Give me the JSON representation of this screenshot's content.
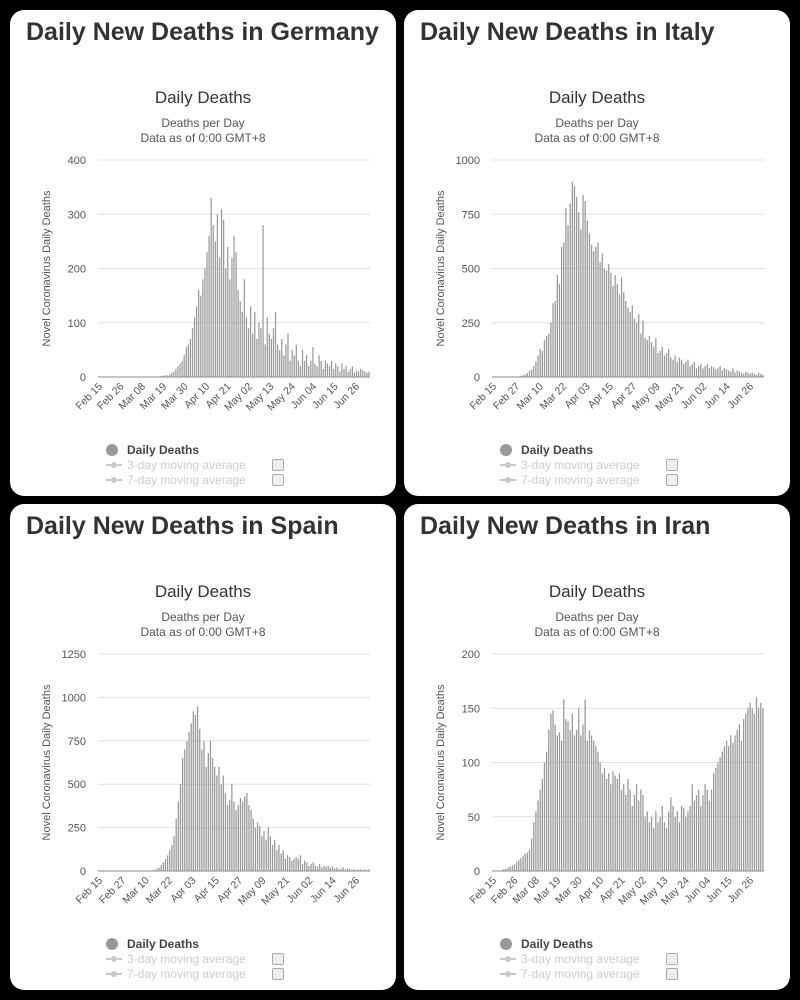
{
  "panels": [
    {
      "title": "Daily New Deaths in Germany",
      "chart_title": "Daily Deaths",
      "subtitle": [
        "Deaths per Day",
        "Data as of 0:00 GMT+8"
      ]
    },
    {
      "title": "Daily New Deaths in Italy",
      "chart_title": "Daily Deaths",
      "subtitle": [
        "Deaths per Day",
        "Data as of 0:00 GMT+8"
      ]
    },
    {
      "title": "Daily New Deaths in Spain",
      "chart_title": "Daily Deaths",
      "subtitle": [
        "Deaths per Day",
        "Data as of 0:00 GMT+8"
      ]
    },
    {
      "title": "Daily New Deaths in Iran",
      "chart_title": "Daily Deaths",
      "subtitle": [
        "Deaths per Day",
        "Data as of 0:00 GMT+8"
      ]
    }
  ],
  "legend": [
    "Daily Deaths",
    "3-day moving average",
    "7-day moving average"
  ],
  "bar_color": "#9a9a9a",
  "chart_data": [
    {
      "type": "bar",
      "title": "Daily Deaths",
      "ylabel": "Novel Coronavirus Daily Deaths",
      "ylim": [
        0,
        400
      ],
      "yticks": [
        0,
        100,
        200,
        300,
        400
      ],
      "xticks": [
        "Feb 15",
        "Feb 26",
        "Mar 08",
        "Mar 19",
        "Mar 30",
        "Apr 10",
        "Apr 21",
        "May 02",
        "May 13",
        "May 24",
        "Jun 04",
        "Jun 15",
        "Jun 26"
      ],
      "series": [
        {
          "name": "Daily Deaths",
          "values": [
            0,
            0,
            0,
            0,
            0,
            0,
            0,
            0,
            0,
            0,
            0,
            0,
            0,
            0,
            0,
            0,
            0,
            0,
            0,
            0,
            0,
            0,
            0,
            0,
            0,
            0,
            0,
            1,
            0,
            1,
            2,
            2,
            3,
            3,
            5,
            8,
            10,
            15,
            20,
            25,
            30,
            40,
            55,
            60,
            70,
            90,
            110,
            130,
            160,
            150,
            180,
            200,
            230,
            260,
            330,
            280,
            250,
            300,
            220,
            310,
            290,
            200,
            240,
            180,
            220,
            260,
            230,
            160,
            140,
            120,
            180,
            110,
            90,
            130,
            80,
            120,
            70,
            100,
            90,
            280,
            60,
            110,
            80,
            70,
            90,
            120,
            60,
            50,
            70,
            40,
            60,
            80,
            30,
            50,
            40,
            60,
            30,
            20,
            50,
            30,
            40,
            20,
            30,
            55,
            25,
            20,
            40,
            30,
            15,
            30,
            25,
            20,
            30,
            15,
            25,
            20,
            10,
            25,
            15,
            20,
            10,
            15,
            20,
            8,
            12,
            10,
            15,
            12,
            10,
            8,
            10
          ]
        }
      ]
    },
    {
      "type": "bar",
      "title": "Daily Deaths",
      "ylabel": "Novel Coronavirus Daily Deaths",
      "ylim": [
        0,
        1000
      ],
      "yticks": [
        0,
        250,
        500,
        750,
        1000
      ],
      "xticks": [
        "Feb 15",
        "Feb 27",
        "Mar 10",
        "Mar 22",
        "Apr 03",
        "Apr 15",
        "Apr 27",
        "May 09",
        "May 21",
        "Jun 02",
        "Jun 14",
        "Jun 26"
      ],
      "series": [
        {
          "name": "Daily Deaths",
          "values": [
            0,
            0,
            0,
            0,
            0,
            0,
            0,
            0,
            0,
            0,
            1,
            2,
            3,
            5,
            8,
            12,
            18,
            28,
            35,
            50,
            70,
            100,
            130,
            120,
            170,
            190,
            200,
            250,
            340,
            350,
            470,
            430,
            600,
            620,
            780,
            700,
            800,
            900,
            880,
            830,
            760,
            680,
            840,
            810,
            720,
            660,
            610,
            580,
            600,
            620,
            530,
            570,
            500,
            490,
            520,
            480,
            420,
            470,
            430,
            380,
            460,
            390,
            350,
            320,
            300,
            330,
            270,
            250,
            290,
            200,
            260,
            180,
            170,
            190,
            160,
            140,
            180,
            110,
            120,
            140,
            100,
            110,
            130,
            90,
            80,
            100,
            70,
            90,
            80,
            60,
            70,
            80,
            50,
            60,
            70,
            40,
            50,
            60,
            40,
            50,
            60,
            40,
            50,
            45,
            35,
            40,
            50,
            30,
            40,
            35,
            30,
            25,
            40,
            20,
            30,
            25,
            20,
            15,
            25,
            20,
            15,
            20,
            15,
            10,
            20,
            15,
            10
          ]
        }
      ]
    },
    {
      "type": "bar",
      "title": "Daily Deaths",
      "ylabel": "Novel Coronavirus Daily Deaths",
      "ylim": [
        0,
        1250
      ],
      "yticks": [
        0,
        250,
        500,
        750,
        1000,
        1250
      ],
      "xticks": [
        "Feb 15",
        "Feb 27",
        "Mar 10",
        "Mar 22",
        "Apr 03",
        "Apr 15",
        "Apr 27",
        "May 09",
        "May 21",
        "Jun 02",
        "Jun 14",
        "Jun 26"
      ],
      "series": [
        {
          "name": "Daily Deaths",
          "values": [
            0,
            0,
            0,
            0,
            0,
            0,
            0,
            0,
            0,
            0,
            0,
            0,
            0,
            0,
            0,
            0,
            0,
            0,
            0,
            0,
            0,
            0,
            1,
            2,
            3,
            5,
            8,
            15,
            20,
            35,
            50,
            70,
            90,
            120,
            150,
            200,
            300,
            400,
            500,
            650,
            700,
            750,
            800,
            850,
            920,
            900,
            950,
            820,
            700,
            750,
            600,
            680,
            750,
            650,
            600,
            550,
            600,
            500,
            550,
            450,
            380,
            410,
            500,
            400,
            350,
            380,
            420,
            400,
            430,
            450,
            380,
            350,
            300,
            250,
            280,
            260,
            200,
            230,
            180,
            250,
            200,
            150,
            180,
            120,
            150,
            100,
            120,
            70,
            90,
            80,
            60,
            70,
            80,
            70,
            90,
            40,
            60,
            50,
            30,
            40,
            50,
            30,
            25,
            40,
            20,
            30,
            25,
            30,
            20,
            25,
            15,
            20,
            10,
            15,
            20,
            10,
            15,
            10,
            8,
            10,
            5,
            8,
            10,
            5,
            8,
            5,
            10
          ]
        }
      ]
    },
    {
      "type": "bar",
      "title": "Daily Deaths",
      "ylabel": "Novel Coronavirus Daily Deaths",
      "ylim": [
        0,
        200
      ],
      "yticks": [
        0,
        50,
        100,
        150,
        200
      ],
      "xticks": [
        "Feb 15",
        "Feb 26",
        "Mar 08",
        "Mar 19",
        "Mar 30",
        "Apr 10",
        "Apr 21",
        "May 02",
        "May 13",
        "May 24",
        "Jun 04",
        "Jun 15",
        "Jun 26"
      ],
      "series": [
        {
          "name": "Daily Deaths",
          "values": [
            0,
            0,
            0,
            0,
            1,
            2,
            2,
            3,
            4,
            5,
            6,
            8,
            10,
            12,
            14,
            16,
            17,
            20,
            30,
            45,
            55,
            65,
            75,
            85,
            100,
            110,
            130,
            145,
            148,
            135,
            125,
            128,
            120,
            158,
            140,
            138,
            130,
            145,
            125,
            130,
            150,
            125,
            135,
            158,
            120,
            130,
            125,
            120,
            115,
            110,
            100,
            90,
            95,
            85,
            90,
            80,
            92,
            88,
            85,
            90,
            75,
            80,
            70,
            85,
            75,
            60,
            70,
            80,
            65,
            75,
            70,
            50,
            55,
            45,
            50,
            40,
            55,
            45,
            50,
            60,
            45,
            40,
            55,
            68,
            60,
            50,
            55,
            45,
            60,
            58,
            50,
            55,
            60,
            80,
            65,
            70,
            75,
            60,
            70,
            80,
            75,
            65,
            75,
            90,
            95,
            100,
            105,
            110,
            115,
            120,
            115,
            125,
            118,
            125,
            130,
            135,
            120,
            140,
            145,
            150,
            155,
            150,
            145,
            160,
            150,
            155,
            150
          ]
        }
      ]
    }
  ]
}
